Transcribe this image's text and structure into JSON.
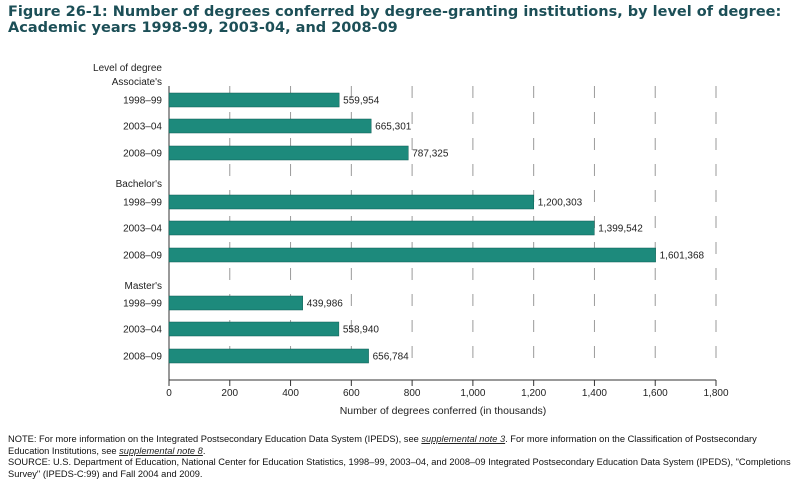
{
  "title_lines": [
    "Figure 26-1: Number of degrees conferred by degree-granting institutions, by level of degree:",
    "Academic years 1998-99, 2003-04, and 2008-09"
  ],
  "chart_data": {
    "type": "bar",
    "orientation": "horizontal",
    "title": "Figure 26-1: Number of degrees conferred by degree-granting institutions, by level of degree: Academic years 1998-99, 2003-04, and 2008-09",
    "ylabel": "Level of degree",
    "xlabel": "Number of degrees conferred (in thousands)",
    "xlim": [
      0,
      1800
    ],
    "xticks": [
      "0",
      "200",
      "400",
      "600",
      "800",
      "1,000",
      "1,200",
      "1,400",
      "1,600",
      "1,800"
    ],
    "grid": true,
    "bar_color": "#1d8a7c",
    "groups": [
      {
        "name": "Associate's",
        "bars": [
          {
            "year": "1998–99",
            "value": 559954,
            "label": "559,954"
          },
          {
            "year": "2003–04",
            "value": 665301,
            "label": "665,301"
          },
          {
            "year": "2008–09",
            "value": 787325,
            "label": "787,325"
          }
        ]
      },
      {
        "name": "Bachelor's",
        "bars": [
          {
            "year": "1998–99",
            "value": 1200303,
            "label": "1,200,303"
          },
          {
            "year": "2003–04",
            "value": 1399542,
            "label": "1,399,542"
          },
          {
            "year": "2008–09",
            "value": 1601368,
            "label": "1,601,368"
          }
        ]
      },
      {
        "name": "Master's",
        "bars": [
          {
            "year": "1998–99",
            "value": 439986,
            "label": "439,986"
          },
          {
            "year": "2003–04",
            "value": 558940,
            "label": "558,940"
          },
          {
            "year": "2008–09",
            "value": 656784,
            "label": "656,784"
          }
        ]
      }
    ]
  },
  "notes": {
    "note_prefix": "NOTE: For more information on the Integrated Postsecondary Education Data System (IPEDS), see ",
    "note_link1": "supplemental note 3",
    "note_mid": ". For more information on the Classification of Postsecondary Education Institutions, see ",
    "note_link2": "supplemental note 8",
    "note_end": ".",
    "source": "SOURCE: U.S. Department of Education, National Center for Education Statistics, 1998–99, 2003–04, and 2008–09 Integrated Postsecondary Education Data System (IPEDS), \"Completions Survey\" (IPEDS-C:99) and Fall 2004 and 2009."
  }
}
